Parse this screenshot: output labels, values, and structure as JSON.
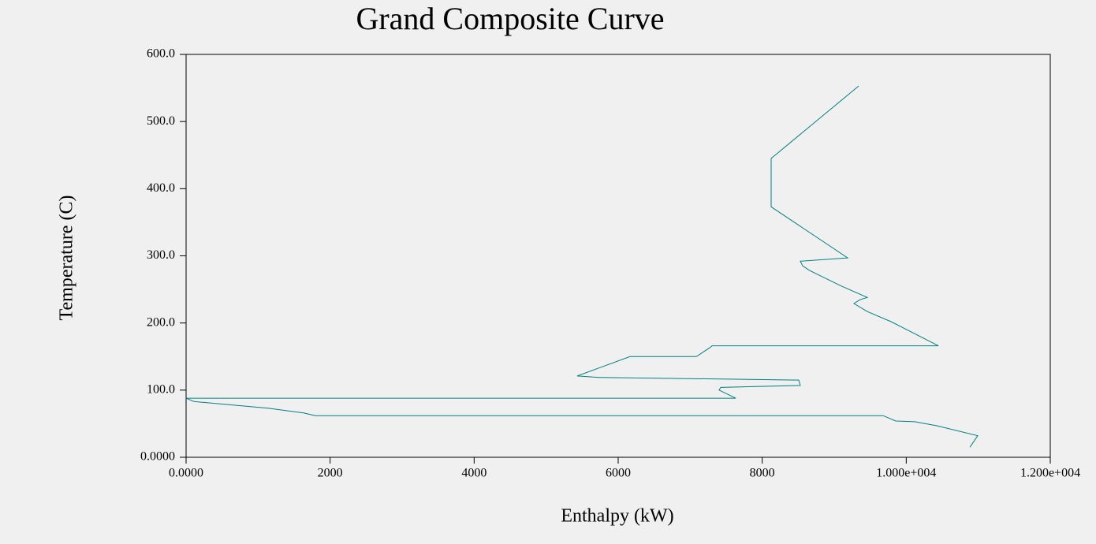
{
  "chart_data": {
    "type": "line",
    "title": "Grand Composite Curve",
    "x_label": "Enthalpy (kW)",
    "y_label": "Temperature (C)",
    "color": "#008080",
    "x": [
      9340,
      8124,
      8124,
      9186,
      8529,
      8562,
      8661,
      9099,
      9460,
      9362,
      9274,
      9460,
      9789,
      10446,
      7303,
      7270,
      7084,
      6164,
      5431,
      5737,
      8507,
      8529,
      7424,
      7402,
      7632,
      0,
      110,
      1139,
      1631,
      1796,
      9679,
      9854,
      10117,
      10424,
      10993,
      10884
    ],
    "values": [
      553,
      445,
      373,
      297,
      292,
      285,
      278,
      255,
      238,
      235,
      229,
      217,
      202,
      166,
      166,
      163,
      150,
      150,
      121,
      119,
      115,
      107,
      104,
      100,
      88,
      88,
      83,
      73,
      66,
      62,
      62,
      54,
      53,
      47,
      32,
      15
    ],
    "xlim": [
      0,
      12000
    ],
    "xticks": [
      {
        "value": 0,
        "label": "0.0000"
      },
      2000,
      4000,
      6000,
      8000,
      {
        "value": 10000,
        "label": "1.000e+004"
      },
      {
        "value": 12000,
        "label": "1.200e+004"
      }
    ],
    "ylim": [
      0,
      600
    ],
    "yticks": [
      {
        "value": 0,
        "label": "0.0000"
      },
      {
        "value": 100,
        "label": "100.0"
      },
      {
        "value": 200,
        "label": "200.0"
      },
      {
        "value": 300,
        "label": "300.0"
      },
      {
        "value": 400,
        "label": "400.0"
      },
      {
        "value": 500,
        "label": "500.0"
      },
      {
        "value": 600,
        "label": "600.0"
      }
    ]
  }
}
